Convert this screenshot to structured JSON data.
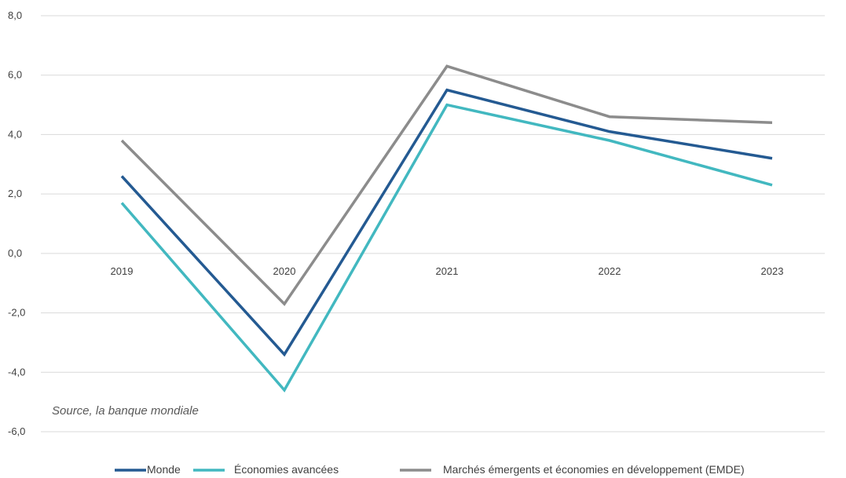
{
  "chart_data": {
    "type": "line",
    "categories": [
      "2019",
      "2020",
      "2021",
      "2022",
      "2023"
    ],
    "series": [
      {
        "name": "Monde",
        "color": "#245a92",
        "values": [
          2.6,
          -3.4,
          5.5,
          4.1,
          3.2
        ]
      },
      {
        "name": "Économies avancées",
        "color": "#42b8c0",
        "values": [
          1.7,
          -4.6,
          5.0,
          3.8,
          2.3
        ]
      },
      {
        "name": "Marchés émergents et économies en développement (EMDE)",
        "color": "#8c8c8c",
        "values": [
          3.8,
          -1.7,
          6.3,
          4.6,
          4.4
        ]
      }
    ],
    "yticks": [
      "8,0",
      "6,0",
      "4,0",
      "2,0",
      "0,0",
      "-2,0",
      "-4,0",
      "-6,0"
    ],
    "ylim": [
      -6,
      8
    ],
    "grid": true,
    "legend": "bottom",
    "annotation": "Source, la banque mondiale"
  }
}
